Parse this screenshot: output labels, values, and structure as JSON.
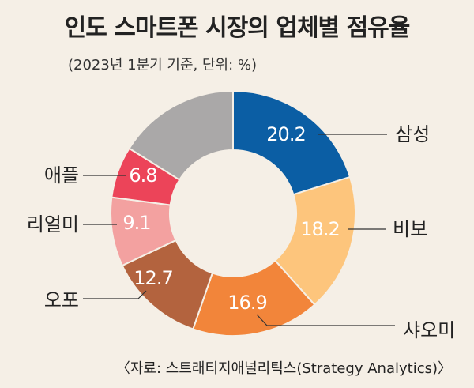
{
  "chart_data": {
    "type": "pie",
    "title": "인도 스마트폰 시장의 업체별 점유율",
    "subtitle": "(2023년 1분기 기준, 단위: %)",
    "source": "〈자료: 스트래티지애널리틱스(Strategy Analytics)〉",
    "categories": [
      "삼성",
      "비보",
      "샤오미",
      "오포",
      "리얼미",
      "애플",
      ""
    ],
    "values": [
      20.2,
      18.2,
      16.9,
      12.7,
      9.1,
      6.8,
      16.1
    ],
    "value_labels": [
      "20.2",
      "18.2",
      "16.9",
      "12.7",
      "9.1",
      "6.8",
      ""
    ],
    "colors": [
      "#0b5ea4",
      "#fdc57c",
      "#f2853a",
      "#b3633e",
      "#f3a1a0",
      "#ec4459",
      "#aaa8a8"
    ],
    "donut": true
  }
}
